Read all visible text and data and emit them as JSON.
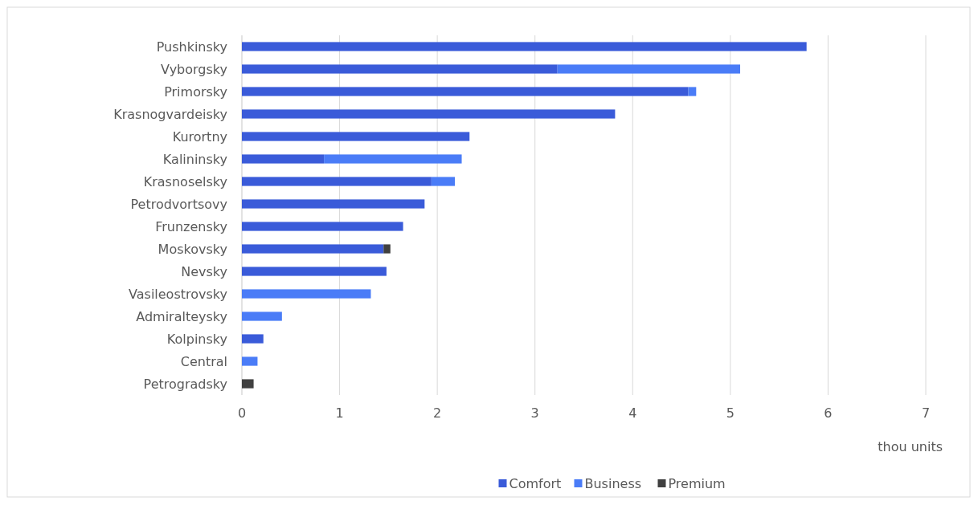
{
  "chart_data": {
    "type": "bar",
    "orientation": "horizontal",
    "stacked": true,
    "xlabel": "thou units",
    "categories": [
      "Pushkinsky",
      "Vyborgsky",
      "Primorsky",
      "Krasnogvardeisky",
      "Kurortny",
      "Kalininsky",
      "Krasnoselsky",
      "Petrodvortsovy",
      "Frunzensky",
      "Moskovsky",
      "Nevsky",
      "Vasileostrovsky",
      "Admiralteysky",
      "Kolpinsky",
      "Central",
      "Petrogradsky"
    ],
    "series": [
      {
        "name": "Comfort",
        "color": "#3a5bd9",
        "values": [
          5.78,
          3.23,
          4.57,
          3.82,
          2.33,
          0.84,
          1.94,
          1.87,
          1.65,
          1.45,
          1.48,
          null,
          null,
          0.22,
          null,
          null
        ]
      },
      {
        "name": "Business",
        "color": "#4a7cf7",
        "values": [
          null,
          1.87,
          0.08,
          null,
          null,
          1.41,
          0.24,
          null,
          null,
          null,
          null,
          1.32,
          0.41,
          null,
          0.16,
          null
        ]
      },
      {
        "name": "Premium",
        "color": "#404040",
        "values": [
          null,
          null,
          null,
          null,
          null,
          null,
          null,
          null,
          null,
          0.07,
          null,
          null,
          null,
          null,
          null,
          0.12
        ]
      }
    ],
    "xlim": [
      0,
      7
    ],
    "xticks": [
      0,
      1,
      2,
      3,
      4,
      5,
      6,
      7
    ],
    "grid": "x",
    "legend": "bottom"
  }
}
